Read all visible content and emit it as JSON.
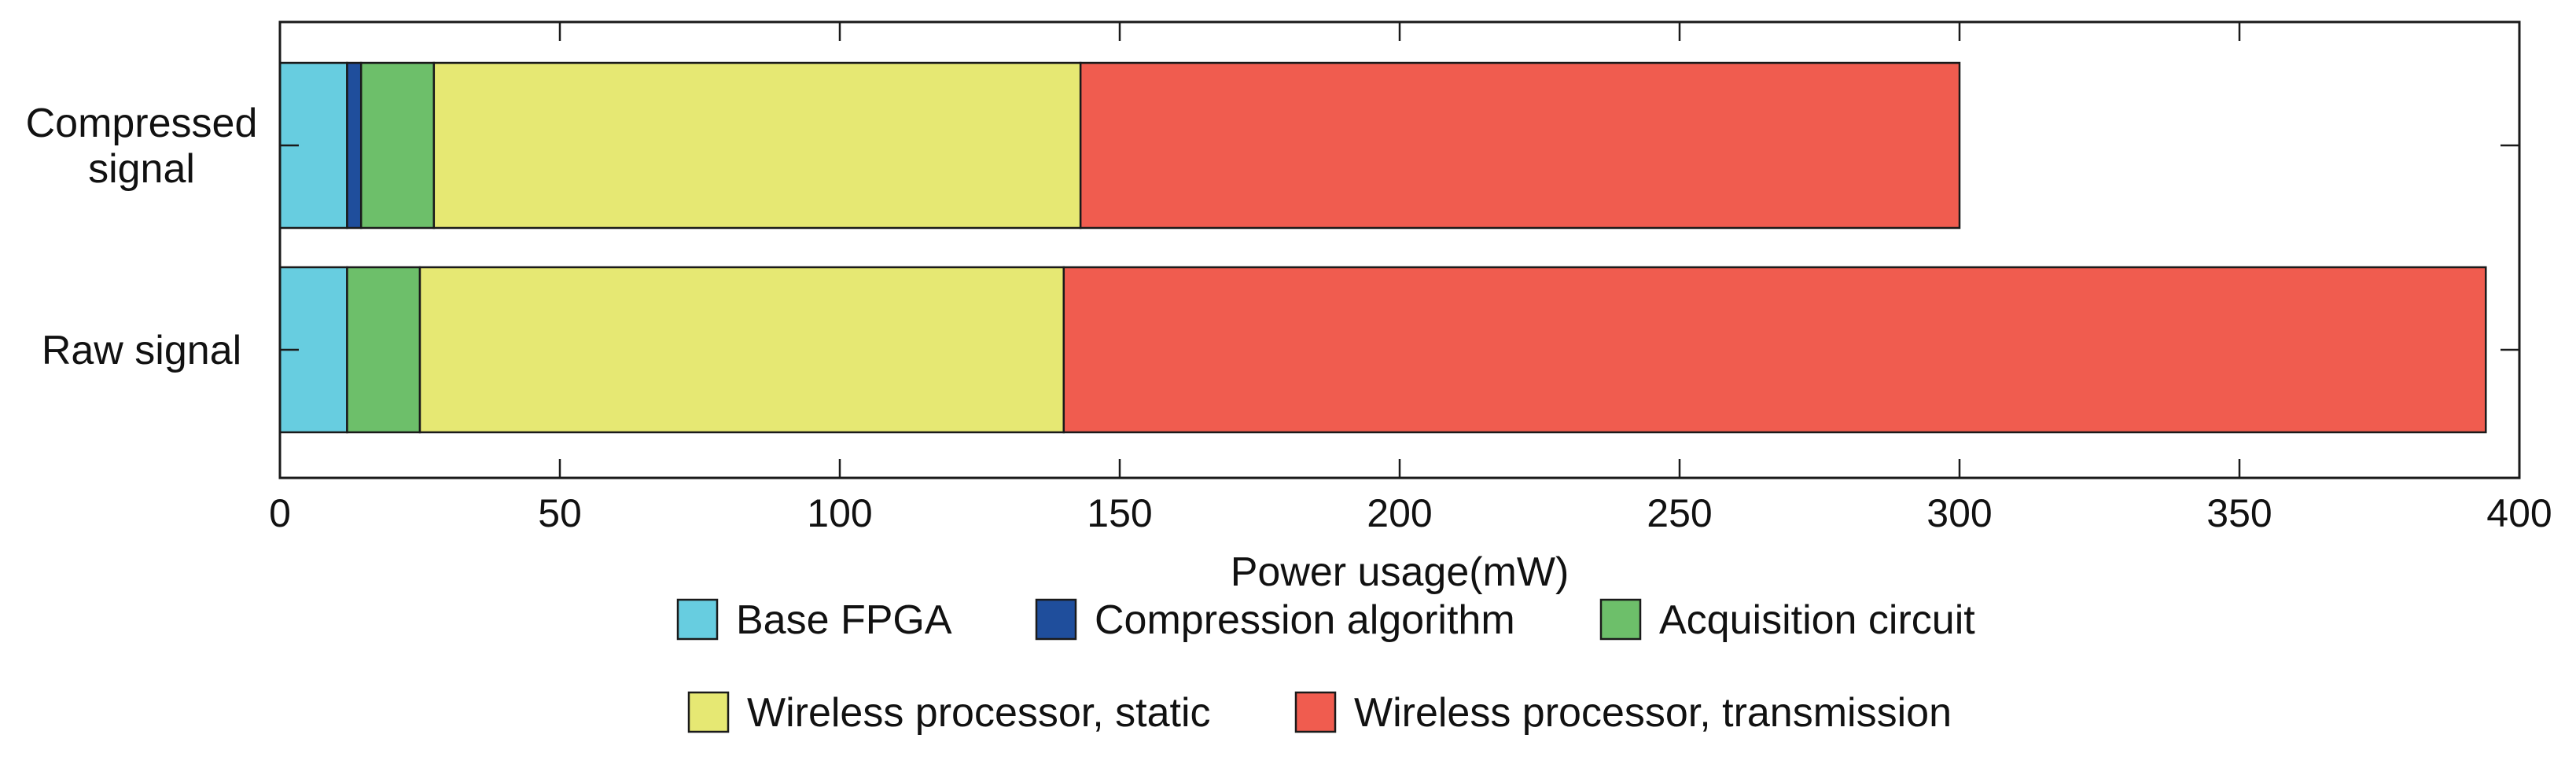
{
  "chart_data": {
    "type": "bar",
    "orientation": "horizontal",
    "stacked": true,
    "title": "",
    "xlabel": "Power usage(mW)",
    "ylabel": "",
    "xlim": [
      0,
      400
    ],
    "x_ticks": [
      "0",
      "50",
      "100",
      "150",
      "200",
      "250",
      "300",
      "350",
      "400"
    ],
    "x_tick_values": [
      0,
      50,
      100,
      150,
      200,
      250,
      300,
      350,
      400
    ],
    "grid": false,
    "legend_position": "bottom",
    "categories": [
      {
        "id": "compressed",
        "lines": [
          "Compressed",
          "signal"
        ]
      },
      {
        "id": "raw",
        "lines": [
          "Raw signal"
        ]
      }
    ],
    "series": [
      {
        "name": "Base FPGA",
        "color": "#67cde0",
        "values": [
          12,
          12
        ]
      },
      {
        "name": "Compression algorithm",
        "color": "#1f4e9c",
        "values": [
          2.5,
          0
        ]
      },
      {
        "name": "Acquisition circuit",
        "color": "#6dbf6a",
        "values": [
          13,
          13
        ]
      },
      {
        "name": "Wireless processor, static",
        "color": "#e6e873",
        "values": [
          115.5,
          115
        ]
      },
      {
        "name": "Wireless processor, transmission",
        "color": "#f05c4f",
        "values": [
          157,
          254
        ]
      }
    ]
  }
}
